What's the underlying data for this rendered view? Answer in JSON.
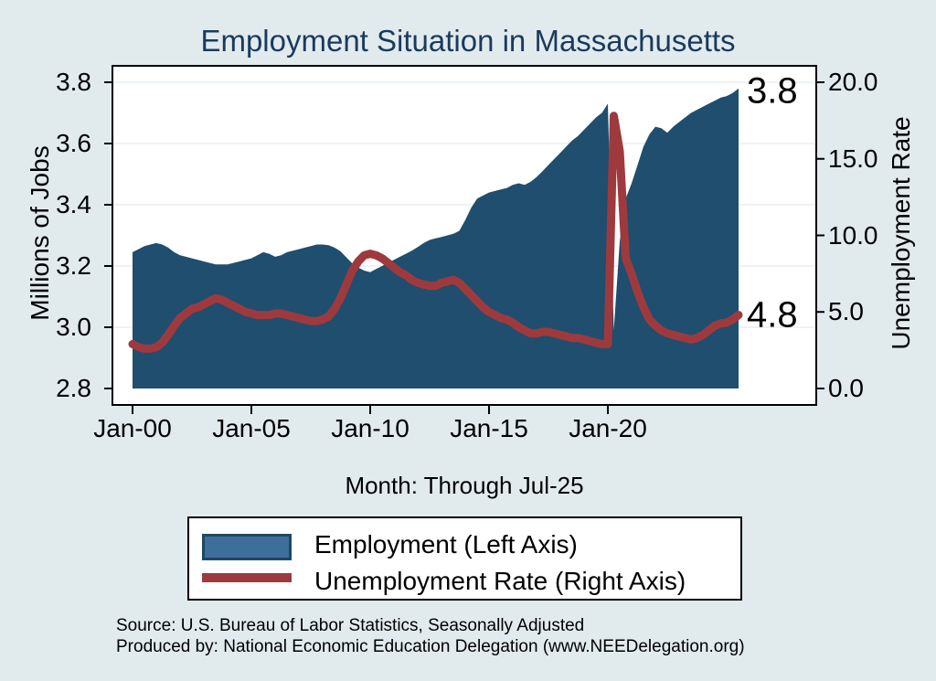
{
  "chart_data": {
    "type": "area",
    "title": "Employment Situation in Massachusetts",
    "xlabel": "Month: Through Jul-25",
    "grid": "horizontal",
    "legend_position": "bottom",
    "x_axis": {
      "tick_labels": [
        "Jan-00",
        "Jan-05",
        "Jan-10",
        "Jan-15",
        "Jan-20"
      ],
      "tick_years": [
        2000,
        2005,
        2010,
        2015,
        2020
      ],
      "start_year": 2000.0,
      "step_years": 0.25,
      "end_month_label": "Jul-25"
    },
    "left_axis": {
      "label": "Millions of Jobs",
      "tick_labels": [
        "3.8",
        "3.6",
        "3.4",
        "3.2",
        "3.0",
        "2.8"
      ],
      "tick_values": [
        3.8,
        3.6,
        3.4,
        3.2,
        3.0,
        2.8
      ],
      "range": [
        2.8,
        3.8
      ]
    },
    "right_axis": {
      "label": "Unemployment Rate",
      "tick_labels": [
        "20.0",
        "15.0",
        "10.0",
        "5.0",
        "0.0"
      ],
      "tick_values": [
        20,
        15,
        10,
        5,
        0
      ],
      "range": [
        0,
        20
      ]
    },
    "series": [
      {
        "name": "Employment (Left Axis)",
        "axis": "left",
        "style": "area",
        "color": "#1f4e6f",
        "values": [
          3.245,
          3.255,
          3.265,
          3.27,
          3.275,
          3.27,
          3.26,
          3.245,
          3.235,
          3.23,
          3.225,
          3.22,
          3.215,
          3.21,
          3.205,
          3.205,
          3.205,
          3.21,
          3.215,
          3.22,
          3.225,
          3.235,
          3.245,
          3.24,
          3.23,
          3.235,
          3.245,
          3.25,
          3.255,
          3.26,
          3.265,
          3.27,
          3.27,
          3.268,
          3.26,
          3.248,
          3.228,
          3.208,
          3.195,
          3.185,
          3.18,
          3.19,
          3.2,
          3.21,
          3.22,
          3.23,
          3.24,
          3.25,
          3.262,
          3.275,
          3.285,
          3.29,
          3.295,
          3.3,
          3.305,
          3.315,
          3.35,
          3.39,
          3.42,
          3.43,
          3.44,
          3.445,
          3.45,
          3.455,
          3.465,
          3.47,
          3.465,
          3.475,
          3.49,
          3.51,
          3.53,
          3.55,
          3.57,
          3.59,
          3.61,
          3.625,
          3.645,
          3.665,
          3.685,
          3.7,
          3.73,
          2.99,
          3.28,
          3.42,
          3.47,
          3.53,
          3.59,
          3.63,
          3.655,
          3.65,
          3.635,
          3.655,
          3.67,
          3.685,
          3.7,
          3.71,
          3.72,
          3.73,
          3.74,
          3.75,
          3.755,
          3.765,
          3.78
        ]
      },
      {
        "name": "Unemployment Rate (Right Axis)",
        "axis": "right",
        "style": "line",
        "color": "#9e3a3d",
        "values": [
          2.9,
          2.7,
          2.6,
          2.6,
          2.7,
          3.0,
          3.5,
          4.1,
          4.6,
          4.9,
          5.2,
          5.3,
          5.5,
          5.7,
          5.9,
          5.8,
          5.6,
          5.4,
          5.2,
          5.0,
          4.9,
          4.8,
          4.8,
          4.8,
          4.9,
          4.9,
          4.8,
          4.7,
          4.6,
          4.5,
          4.4,
          4.4,
          4.5,
          4.7,
          5.2,
          5.9,
          6.8,
          7.7,
          8.3,
          8.7,
          8.8,
          8.7,
          8.5,
          8.2,
          7.9,
          7.6,
          7.4,
          7.1,
          6.9,
          6.8,
          6.7,
          6.7,
          6.9,
          7.0,
          7.1,
          6.9,
          6.5,
          6.1,
          5.7,
          5.3,
          5.0,
          4.8,
          4.6,
          4.5,
          4.3,
          4.0,
          3.8,
          3.6,
          3.6,
          3.7,
          3.7,
          3.6,
          3.5,
          3.4,
          3.3,
          3.3,
          3.2,
          3.1,
          3.0,
          2.9,
          2.9,
          17.8,
          15.5,
          8.5,
          7.5,
          6.3,
          5.3,
          4.5,
          4.1,
          3.8,
          3.6,
          3.5,
          3.4,
          3.3,
          3.2,
          3.3,
          3.5,
          3.8,
          4.1,
          4.25,
          4.3,
          4.5,
          4.8
        ]
      }
    ],
    "annotations": [
      {
        "text": "3.8",
        "axis": "left",
        "anchor": "series-end"
      },
      {
        "text": "4.8",
        "axis": "right",
        "anchor": "series-end"
      }
    ]
  },
  "legend": {
    "entries": [
      {
        "label": "Employment (Left Axis)",
        "swatch": "bar"
      },
      {
        "label": "Unemployment Rate (Right Axis)",
        "swatch": "line"
      }
    ]
  },
  "footer": {
    "line1": "Source: U.S. Bureau of Labor Statistics, Seasonally Adjusted",
    "line2": "Produced by: National Economic Education Delegation (www.NEEDelegation.org)"
  },
  "colors": {
    "background": "#e1ebee",
    "plot_background": "#ffffff",
    "title_text": "#1b3a5c",
    "employment_fill": "#1f4e6f",
    "unemployment_line": "#9e3a3d",
    "gridline": "#e7eff2",
    "axis_line": "#000000",
    "legend_swatch_fill": "#3e6f9b",
    "legend_swatch_border": "#1d4965"
  }
}
